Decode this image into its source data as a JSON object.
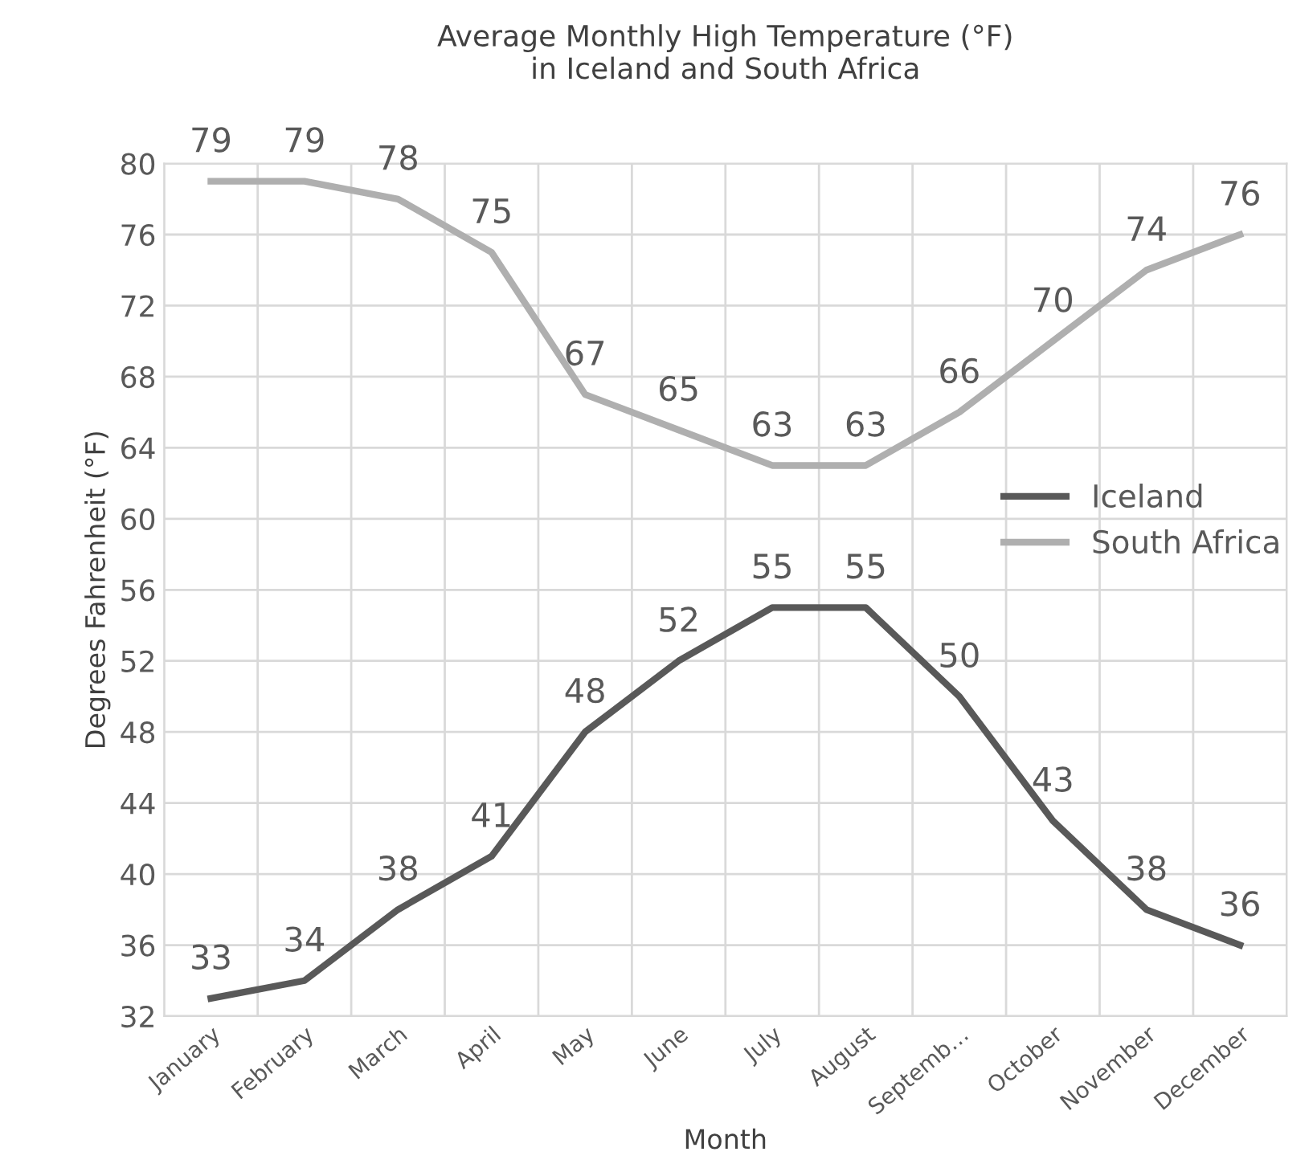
{
  "chart_data": {
    "type": "line",
    "title": "Average Monthly High Temperature (°F)\nin Iceland and South Africa",
    "xlabel": "Month",
    "ylabel": "Degrees Fahrenheit (°F)",
    "categories": [
      "January",
      "February",
      "March",
      "April",
      "May",
      "June",
      "July",
      "August",
      "Septemb…",
      "October",
      "November",
      "December"
    ],
    "series": [
      {
        "name": "Iceland",
        "color": "#595959",
        "values": [
          33,
          34,
          38,
          41,
          48,
          52,
          55,
          55,
          50,
          43,
          38,
          36
        ]
      },
      {
        "name": "South Africa",
        "color": "#afafaf",
        "values": [
          79,
          79,
          78,
          75,
          67,
          65,
          63,
          63,
          66,
          70,
          74,
          76
        ]
      }
    ],
    "ylim": [
      32,
      80
    ],
    "yticks": [
      32,
      36,
      40,
      44,
      48,
      52,
      56,
      60,
      64,
      68,
      72,
      76,
      80
    ],
    "grid": true,
    "legend": "right",
    "data_labels": true,
    "marker": "none",
    "line_style": "solid"
  }
}
